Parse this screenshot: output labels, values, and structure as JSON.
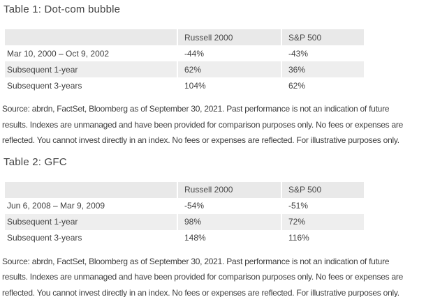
{
  "colors": {
    "page_bg": "#ffffff",
    "table_header_bg": "#e9e9e9",
    "table_stripe_bg": "#eeeeee",
    "text": "#3f3f3f"
  },
  "sections": [
    {
      "title": "Table 1: Dot-com bubble",
      "table": {
        "columns": [
          "",
          "Russell 2000",
          "S&P 500"
        ],
        "rows": [
          {
            "label": "Mar 10, 2000 – Oct 9, 2002",
            "russell_2000": "-44%",
            "sp_500": "-43%"
          },
          {
            "label": "Subsequent 1-year",
            "russell_2000": "62%",
            "sp_500": "36%"
          },
          {
            "label": "Subsequent 3-years",
            "russell_2000": "104%",
            "sp_500": "62%"
          }
        ]
      },
      "source_lines": [
        "Source: abrdn, FactSet, Bloomberg as of September 30, 2021. Past performance is not an indication of future",
        "results. Indexes are unmanaged and have been provided for comparison purposes only. No fees or expenses are",
        "reflected. You cannot invest directly in an index. No fees or expenses are reflected. For illustrative purposes only."
      ]
    },
    {
      "title": "Table 2: GFC",
      "table": {
        "columns": [
          "",
          "Russell 2000",
          "S&P 500"
        ],
        "rows": [
          {
            "label": "Jun 6, 2008 – Mar 9, 2009",
            "russell_2000": "-54%",
            "sp_500": "-51%"
          },
          {
            "label": "Subsequent 1-year",
            "russell_2000": "98%",
            "sp_500": "72%"
          },
          {
            "label": "Subsequent 3-years",
            "russell_2000": "148%",
            "sp_500": "116%"
          }
        ]
      },
      "source_lines": [
        "Source: abrdn, FactSet, Bloomberg as of September 30, 2021. Past performance is not an indication of future",
        "results. Indexes are unmanaged and have been provided for comparison purposes only. No fees or expenses are",
        "reflected. You cannot invest directly in an index. No fees or expenses are reflected. For illustrative purposes only."
      ]
    }
  ]
}
